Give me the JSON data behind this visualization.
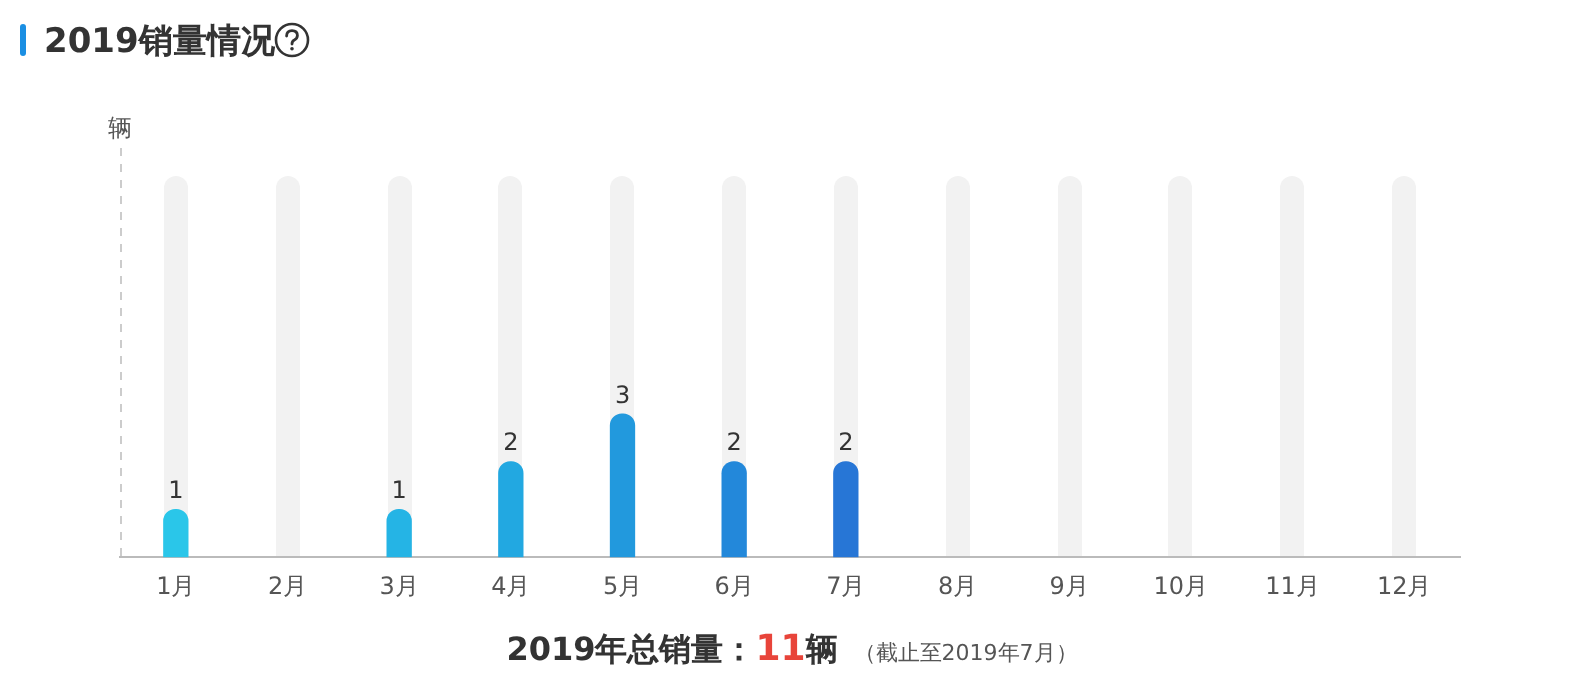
{
  "chart_data": {
    "type": "bar",
    "title": "2019销量情况",
    "categories": [
      "1月",
      "2月",
      "3月",
      "4月",
      "5月",
      "6月",
      "7月",
      "8月",
      "9月",
      "10月",
      "11月",
      "12月"
    ],
    "values": [
      1,
      null,
      1,
      2,
      3,
      2,
      2,
      null,
      null,
      null,
      null,
      null
    ],
    "colors": [
      "#2ac6e9",
      "#28bde7",
      "#25b4e5",
      "#22a8e1",
      "#2299dd",
      "#2388da",
      "#2776d6",
      "#2a6fd4",
      "#2a6fd4",
      "#2a6fd4",
      "#2a6fd4",
      "#2a6fd4"
    ],
    "value_labels": [
      "1",
      null,
      "1",
      "2",
      "3",
      "2",
      "2",
      null,
      null,
      null,
      null,
      null
    ],
    "tick_labels": "x",
    "grid": false,
    "legend": false,
    "annotations": [
      "2019年总销量：",
      "11",
      "辆",
      "（截止至2019年7月）",
      "辆"
    ]
  }
}
